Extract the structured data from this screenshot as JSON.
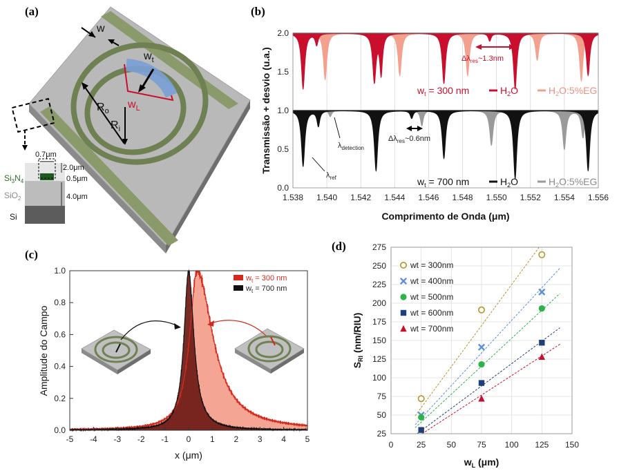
{
  "panel_a": {
    "label": "(a)",
    "w": "w",
    "wt": "w",
    "wt_sub": "t",
    "wl": "w",
    "wl_sub": "L",
    "ro": "R",
    "ro_sub": "o",
    "ri": "R",
    "ri_sub": "i",
    "dim_top": "0.7μm",
    "dim_2": "2.0μm",
    "dim_05": "0.5μm",
    "dim_4": "4.0μm",
    "si3n4_a": "Si",
    "si3n4_b": "3",
    "si3n4_c": "N",
    "si3n4_d": "4",
    "sio2_a": "SiO",
    "sio2_b": "2",
    "si": "Si"
  },
  "panel_b": {
    "label": "(b)",
    "annot_top_a": "Δλ",
    "annot_top_sub": "res",
    "annot_top_b": "~1.3nm",
    "annot_bot_a": "Δλ",
    "annot_bot_sub": "res",
    "annot_bot_b": "~0.6nm",
    "lambda_det": "λ",
    "lambda_det_sub": "detection",
    "lambda_ref": "λ",
    "lambda_ref_sub": "ref",
    "legend_top_a": "w",
    "legend_top_sub": "t",
    "legend_top_b": " = 300 nm",
    "legend_bot_a": "w",
    "legend_bot_sub": "t",
    "legend_bot_b": " = 700 nm",
    "h2o_a": "H",
    "h2o_b": "2",
    "h2o_c": "O",
    "eg_a": "H",
    "eg_b": "2",
    "eg_c": "O:5%EG",
    "color_top_dark": "#c8102e",
    "color_top_light": "#f4a08f",
    "color_bot_dark": "#111111",
    "color_bot_light": "#9a9a9a"
  },
  "panel_c": {
    "label": "(c)",
    "leg1_a": "w",
    "leg1_sub": "t",
    "leg1_b": " = 300 nm",
    "leg2_a": "w",
    "leg2_sub": "t",
    "leg2_b": " = 700 nm",
    "color_300": "#d42a1e",
    "color_300_fill": "#f4a594",
    "color_700": "#111111",
    "color_overlap": "#6b1a14"
  },
  "panel_d": {
    "label": "(d)",
    "ylabel_a": "S",
    "ylabel_sub": "RI",
    "ylabel_b": " (nm/RIU)",
    "xlabel_a": "w",
    "xlabel_sub": "L",
    "xlabel_b": " (μm)"
  },
  "chart_data": [
    {
      "type": "line",
      "panel": "b",
      "xlabel": "Comprimento de Onda (μm)",
      "ylabel": "Transmissão + desvio (u.a.)",
      "xlim": [
        1.538,
        1.556
      ],
      "ylim": [
        0.0,
        2.0
      ],
      "xticks": [
        "1.538",
        "1.540",
        "1.542",
        "1.544",
        "1.546",
        "1.548",
        "1.550",
        "1.552",
        "1.554",
        "1.556"
      ],
      "yticks": [
        "0.0",
        "0.5",
        "1.0",
        "1.5",
        "2.0"
      ],
      "grid": true,
      "series": [
        {
          "name": "H2O",
          "group": "wt = 300 nm",
          "offset": 1.0,
          "dips": [
            [
              1.5386,
              0.72,
              0.00012
            ],
            [
              1.5394,
              0.15,
              0.0001
            ],
            [
              1.5428,
              0.62,
              0.00012
            ],
            [
              1.5432,
              0.52,
              0.0001
            ],
            [
              1.5469,
              0.65,
              0.00012
            ],
            [
              1.5496,
              0.1,
              0.0001
            ],
            [
              1.5511,
              0.72,
              0.00012
            ],
            [
              1.5554,
              0.55,
              0.00012
            ]
          ]
        },
        {
          "name": "H2O:5%EG",
          "group": "wt = 300 nm",
          "offset": 1.0,
          "dips": [
            [
              1.5399,
              0.6,
              0.00012
            ],
            [
              1.5443,
              0.55,
              0.00012
            ],
            [
              1.5483,
              0.55,
              0.00012
            ],
            [
              1.5524,
              0.35,
              0.00012
            ],
            [
              1.555,
              0.62,
              0.00012
            ]
          ]
        },
        {
          "name": "H2O",
          "group": "wt = 700 nm",
          "offset": 0.0,
          "dips": [
            [
              1.5386,
              0.72,
              0.00012
            ],
            [
              1.5395,
              0.2,
              0.0001
            ],
            [
              1.5429,
              0.78,
              0.00012
            ],
            [
              1.545,
              0.1,
              0.0001
            ],
            [
              1.5469,
              0.62,
              0.00012
            ],
            [
              1.5511,
              0.88,
              0.00012
            ],
            [
              1.5554,
              0.78,
              0.00012
            ]
          ]
        },
        {
          "name": "H2O:5%EG",
          "group": "wt = 700 nm",
          "offset": 0.0,
          "dips": [
            [
              1.5402,
              0.08,
              0.0001
            ],
            [
              1.5456,
              0.2,
              0.0001
            ],
            [
              1.5497,
              0.45,
              0.00012
            ],
            [
              1.554,
              0.5,
              0.00012
            ],
            [
              1.5551,
              0.35,
              0.00012
            ]
          ]
        }
      ]
    },
    {
      "type": "area",
      "panel": "c",
      "xlabel": "x (μm)",
      "ylabel": "Amplitude do Campo",
      "xlim": [
        -5,
        5
      ],
      "ylim": [
        0.0,
        1.0
      ],
      "xticks": [
        "-5",
        "-4",
        "-3",
        "-2",
        "-1",
        "0",
        "1",
        "2",
        "3",
        "4",
        "5"
      ],
      "yticks": [
        "0.0",
        "0.2",
        "0.4",
        "0.6",
        "0.8",
        "1.0"
      ],
      "legend": "top-right",
      "series": [
        {
          "name": "wt = 300 nm",
          "peak_x": 0.35,
          "peak_y": 1.0,
          "left_width": 0.55,
          "right_width": 1.2
        },
        {
          "name": "wt = 700 nm",
          "peak_x": 0.0,
          "peak_y": 1.0,
          "left_width": 0.35,
          "right_width": 0.4
        }
      ]
    },
    {
      "type": "scatter",
      "panel": "d",
      "xlabel": "wL (μm)",
      "ylabel": "SRI (nm/RIU)",
      "xlim": [
        0,
        150
      ],
      "ylim": [
        25,
        275
      ],
      "xticks": [
        "0",
        "25",
        "50",
        "75",
        "100",
        "125",
        "150"
      ],
      "yticks": [
        "25",
        "50",
        "75",
        "100",
        "125",
        "150",
        "175",
        "200",
        "225",
        "250",
        "275"
      ],
      "grid": true,
      "legend": "top-left",
      "x": [
        25,
        75,
        125
      ],
      "series": [
        {
          "name": "wt = 300nm",
          "values": [
            72,
            191,
            265
          ],
          "color": "#b8932b",
          "marker": "circle-open"
        },
        {
          "name": "wt = 400nm",
          "values": [
            50,
            141,
            215
          ],
          "color": "#5b8fd6",
          "marker": "x"
        },
        {
          "name": "wt = 500nm",
          "values": [
            47,
            118,
            193
          ],
          "color": "#2db34a",
          "marker": "circle"
        },
        {
          "name": "wt = 600nm",
          "values": [
            30,
            93,
            147
          ],
          "color": "#1f3f7a",
          "marker": "square"
        },
        {
          "name": "wt = 700nm",
          "values": [
            null,
            72,
            128
          ],
          "color": "#c8102e",
          "marker": "triangle"
        }
      ],
      "fits": [
        {
          "name": "wt = 300nm",
          "slope": 2.2,
          "intercept": 5
        },
        {
          "name": "wt = 400nm",
          "slope": 1.75,
          "intercept": 2
        },
        {
          "name": "wt = 500nm",
          "slope": 1.5,
          "intercept": 3
        },
        {
          "name": "wt = 600nm",
          "slope": 1.2,
          "intercept": -1
        },
        {
          "name": "wt = 700nm",
          "slope": 1.05,
          "intercept": -2
        }
      ]
    }
  ]
}
